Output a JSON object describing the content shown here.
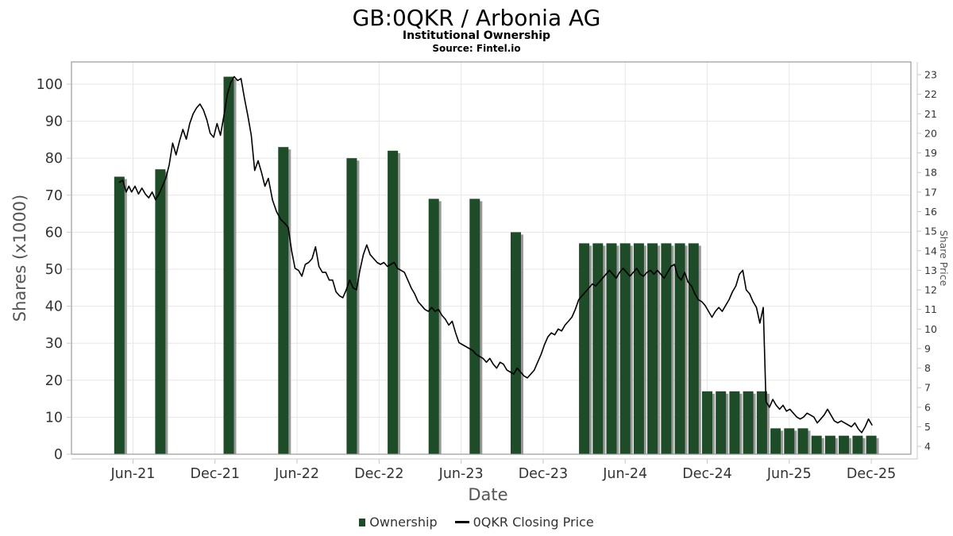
{
  "header": {
    "title": "GB:0QKR / Arbonia AG",
    "subtitle": "Institutional Ownership",
    "source": "Source: Fintel.io"
  },
  "legend": {
    "ownership_label": "Ownership",
    "price_label": "0QKR Closing Price"
  },
  "colors": {
    "bar": "#1e4b28",
    "bar_shadow": "#999999",
    "price_line": "#000000",
    "grid": "#e6e6e6",
    "plot_border": "#999999",
    "axis_line": "#c8c8c8",
    "tick_label": "#333333",
    "axis_title": "#555555"
  },
  "chart_data": {
    "type": "combo-bar-line",
    "x_axis": {
      "title": "Date",
      "ticks": [
        {
          "label": "Jun-21",
          "x": 0
        },
        {
          "label": "Dec-21",
          "x": 6
        },
        {
          "label": "Jun-22",
          "x": 12
        },
        {
          "label": "Dec-22",
          "x": 18
        },
        {
          "label": "Jun-23",
          "x": 24
        },
        {
          "label": "Dec-23",
          "x": 30
        },
        {
          "label": "Jun-24",
          "x": 36
        },
        {
          "label": "Dec-24",
          "x": 42
        },
        {
          "label": "Jun-25",
          "x": 48
        },
        {
          "label": "Dec-25",
          "x": 54
        }
      ],
      "range_months": [
        -4.5,
        56.9
      ],
      "grid": true
    },
    "left_axis": {
      "title": "Shares (x1000)",
      "ticks": [
        0,
        10,
        20,
        30,
        40,
        50,
        60,
        70,
        80,
        90,
        100
      ],
      "range": [
        0,
        106
      ],
      "grid": true
    },
    "right_axis": {
      "title": "Share Price",
      "ticks": [
        4,
        5,
        6,
        7,
        8,
        9,
        10,
        11,
        12,
        13,
        14,
        15,
        16,
        17,
        18,
        19,
        20,
        21,
        22,
        23
      ],
      "range": [
        3.6,
        23.65
      ],
      "grid": false
    },
    "series": [
      {
        "name": "Ownership",
        "type": "bar",
        "axis": "left",
        "points": [
          {
            "date": "May-21",
            "x": -1,
            "y": 75
          },
          {
            "date": "Aug-21",
            "x": 2,
            "y": 77
          },
          {
            "date": "Jan-22",
            "x": 7,
            "y": 102
          },
          {
            "date": "May-22",
            "x": 11,
            "y": 83
          },
          {
            "date": "Oct-22",
            "x": 16,
            "y": 80
          },
          {
            "date": "Jan-23",
            "x": 19,
            "y": 82
          },
          {
            "date": "Apr-23",
            "x": 22,
            "y": 69
          },
          {
            "date": "Jul-23",
            "x": 25,
            "y": 69
          },
          {
            "date": "Oct-23",
            "x": 28,
            "y": 60
          },
          {
            "date": "Mar-24",
            "x": 33,
            "y": 57
          },
          {
            "date": "Apr-24",
            "x": 34,
            "y": 57
          },
          {
            "date": "May-24",
            "x": 35,
            "y": 57
          },
          {
            "date": "Jun-24",
            "x": 36,
            "y": 57
          },
          {
            "date": "Jul-24",
            "x": 37,
            "y": 57
          },
          {
            "date": "Aug-24",
            "x": 38,
            "y": 57
          },
          {
            "date": "Sep-24",
            "x": 39,
            "y": 57
          },
          {
            "date": "Oct-24",
            "x": 40,
            "y": 57
          },
          {
            "date": "Nov-24",
            "x": 41,
            "y": 57
          },
          {
            "date": "Dec-24",
            "x": 42,
            "y": 17
          },
          {
            "date": "Jan-25",
            "x": 43,
            "y": 17
          },
          {
            "date": "Feb-25",
            "x": 44,
            "y": 17
          },
          {
            "date": "Mar-25",
            "x": 45,
            "y": 17
          },
          {
            "date": "Apr-25",
            "x": 46,
            "y": 17
          },
          {
            "date": "May-25",
            "x": 47,
            "y": 7
          },
          {
            "date": "Jun-25",
            "x": 48,
            "y": 7
          },
          {
            "date": "Jul-25",
            "x": 49,
            "y": 7
          },
          {
            "date": "Aug-25",
            "x": 50,
            "y": 5
          },
          {
            "date": "Sep-25",
            "x": 51,
            "y": 5
          },
          {
            "date": "Oct-25",
            "x": 52,
            "y": 5
          },
          {
            "date": "Nov-25",
            "x": 53,
            "y": 5
          },
          {
            "date": "Dec-25",
            "x": 54,
            "y": 5
          }
        ]
      },
      {
        "name": "0QKR Closing Price",
        "type": "line",
        "axis": "right",
        "points": [
          [
            -1.0,
            17.5
          ],
          [
            -0.75,
            17.6
          ],
          [
            -0.5,
            17.0
          ],
          [
            -0.3,
            17.3
          ],
          [
            -0.1,
            17.0
          ],
          [
            0.15,
            17.3
          ],
          [
            0.4,
            16.9
          ],
          [
            0.65,
            17.2
          ],
          [
            0.9,
            16.9
          ],
          [
            1.15,
            16.7
          ],
          [
            1.4,
            17.0
          ],
          [
            1.65,
            16.6
          ],
          [
            1.9,
            16.9
          ],
          [
            2.15,
            17.3
          ],
          [
            2.4,
            17.7
          ],
          [
            2.65,
            18.4
          ],
          [
            2.9,
            19.5
          ],
          [
            3.15,
            18.9
          ],
          [
            3.4,
            19.6
          ],
          [
            3.65,
            20.2
          ],
          [
            3.9,
            19.7
          ],
          [
            4.15,
            20.5
          ],
          [
            4.4,
            21.0
          ],
          [
            4.65,
            21.3
          ],
          [
            4.9,
            21.5
          ],
          [
            5.15,
            21.2
          ],
          [
            5.4,
            20.7
          ],
          [
            5.65,
            20.0
          ],
          [
            5.9,
            19.8
          ],
          [
            6.15,
            20.5
          ],
          [
            6.4,
            19.9
          ],
          [
            6.65,
            20.9
          ],
          [
            6.9,
            22.0
          ],
          [
            7.15,
            22.6
          ],
          [
            7.4,
            22.9
          ],
          [
            7.65,
            22.7
          ],
          [
            7.9,
            22.8
          ],
          [
            8.15,
            21.8
          ],
          [
            8.4,
            20.9
          ],
          [
            8.65,
            19.9
          ],
          [
            8.9,
            18.1
          ],
          [
            9.15,
            18.6
          ],
          [
            9.4,
            18.0
          ],
          [
            9.65,
            17.3
          ],
          [
            9.9,
            17.7
          ],
          [
            10.2,
            16.6
          ],
          [
            10.5,
            16.0
          ],
          [
            10.8,
            15.6
          ],
          [
            11.1,
            15.4
          ],
          [
            11.35,
            15.2
          ],
          [
            11.6,
            14.0
          ],
          [
            11.85,
            13.1
          ],
          [
            12.1,
            13.0
          ],
          [
            12.35,
            12.7
          ],
          [
            12.6,
            13.3
          ],
          [
            12.85,
            13.4
          ],
          [
            13.1,
            13.6
          ],
          [
            13.35,
            14.2
          ],
          [
            13.6,
            13.2
          ],
          [
            13.85,
            12.9
          ],
          [
            14.1,
            12.9
          ],
          [
            14.35,
            12.5
          ],
          [
            14.6,
            12.5
          ],
          [
            14.85,
            11.9
          ],
          [
            15.1,
            11.7
          ],
          [
            15.35,
            11.6
          ],
          [
            15.6,
            12.0
          ],
          [
            15.85,
            12.5
          ],
          [
            16.1,
            12.1
          ],
          [
            16.35,
            12.0
          ],
          [
            16.6,
            13.0
          ],
          [
            16.85,
            13.8
          ],
          [
            17.1,
            14.3
          ],
          [
            17.35,
            13.8
          ],
          [
            17.6,
            13.6
          ],
          [
            17.85,
            13.4
          ],
          [
            18.1,
            13.3
          ],
          [
            18.35,
            13.4
          ],
          [
            18.6,
            13.2
          ],
          [
            18.85,
            13.3
          ],
          [
            19.1,
            13.4
          ],
          [
            19.35,
            13.1
          ],
          [
            19.6,
            13.0
          ],
          [
            19.85,
            12.9
          ],
          [
            20.1,
            12.5
          ],
          [
            20.35,
            12.1
          ],
          [
            20.6,
            11.8
          ],
          [
            20.85,
            11.4
          ],
          [
            21.1,
            11.2
          ],
          [
            21.35,
            11.0
          ],
          [
            21.6,
            10.9
          ],
          [
            21.85,
            11.1
          ],
          [
            22.1,
            10.9
          ],
          [
            22.35,
            11.0
          ],
          [
            22.6,
            10.7
          ],
          [
            22.85,
            10.5
          ],
          [
            23.1,
            10.2
          ],
          [
            23.35,
            10.4
          ],
          [
            23.6,
            9.8
          ],
          [
            23.85,
            9.3
          ],
          [
            24.1,
            9.2
          ],
          [
            24.35,
            9.1
          ],
          [
            24.6,
            9.0
          ],
          [
            24.85,
            8.9
          ],
          [
            25.1,
            8.7
          ],
          [
            25.35,
            8.6
          ],
          [
            25.6,
            8.5
          ],
          [
            25.85,
            8.3
          ],
          [
            26.1,
            8.5
          ],
          [
            26.35,
            8.2
          ],
          [
            26.6,
            8.0
          ],
          [
            26.85,
            8.3
          ],
          [
            27.1,
            8.2
          ],
          [
            27.35,
            7.9
          ],
          [
            27.6,
            7.8
          ],
          [
            27.85,
            7.7
          ],
          [
            28.1,
            8.0
          ],
          [
            28.35,
            7.8
          ],
          [
            28.6,
            7.6
          ],
          [
            28.85,
            7.5
          ],
          [
            29.1,
            7.7
          ],
          [
            29.35,
            7.9
          ],
          [
            29.6,
            8.3
          ],
          [
            29.85,
            8.7
          ],
          [
            30.1,
            9.2
          ],
          [
            30.35,
            9.6
          ],
          [
            30.6,
            9.8
          ],
          [
            30.85,
            9.7
          ],
          [
            31.1,
            10.0
          ],
          [
            31.35,
            9.9
          ],
          [
            31.6,
            10.2
          ],
          [
            31.85,
            10.4
          ],
          [
            32.1,
            10.6
          ],
          [
            32.35,
            11.0
          ],
          [
            32.6,
            11.5
          ],
          [
            32.85,
            11.7
          ],
          [
            33.1,
            11.9
          ],
          [
            33.35,
            12.1
          ],
          [
            33.6,
            12.3
          ],
          [
            33.85,
            12.2
          ],
          [
            34.1,
            12.4
          ],
          [
            34.35,
            12.6
          ],
          [
            34.6,
            12.8
          ],
          [
            34.85,
            13.0
          ],
          [
            35.1,
            12.8
          ],
          [
            35.35,
            12.6
          ],
          [
            35.6,
            12.9
          ],
          [
            35.85,
            13.1
          ],
          [
            36.1,
            12.9
          ],
          [
            36.35,
            12.7
          ],
          [
            36.6,
            12.9
          ],
          [
            36.85,
            13.1
          ],
          [
            37.1,
            12.8
          ],
          [
            37.35,
            12.7
          ],
          [
            37.6,
            12.9
          ],
          [
            37.85,
            13.0
          ],
          [
            38.1,
            12.8
          ],
          [
            38.35,
            13.0
          ],
          [
            38.6,
            12.8
          ],
          [
            38.85,
            12.6
          ],
          [
            39.1,
            12.9
          ],
          [
            39.35,
            13.2
          ],
          [
            39.6,
            13.3
          ],
          [
            39.85,
            12.7
          ],
          [
            40.1,
            12.5
          ],
          [
            40.35,
            12.9
          ],
          [
            40.6,
            12.4
          ],
          [
            40.85,
            12.2
          ],
          [
            41.1,
            11.8
          ],
          [
            41.35,
            11.5
          ],
          [
            41.6,
            11.4
          ],
          [
            41.85,
            11.2
          ],
          [
            42.1,
            10.9
          ],
          [
            42.35,
            10.6
          ],
          [
            42.6,
            10.9
          ],
          [
            42.85,
            11.1
          ],
          [
            43.1,
            10.9
          ],
          [
            43.35,
            11.2
          ],
          [
            43.6,
            11.5
          ],
          [
            43.85,
            11.9
          ],
          [
            44.1,
            12.2
          ],
          [
            44.35,
            12.8
          ],
          [
            44.6,
            13.0
          ],
          [
            44.85,
            12.0
          ],
          [
            45.1,
            11.8
          ],
          [
            45.35,
            11.4
          ],
          [
            45.6,
            11.1
          ],
          [
            45.85,
            10.3
          ],
          [
            46.1,
            11.1
          ],
          [
            46.3,
            6.3
          ],
          [
            46.55,
            6.0
          ],
          [
            46.8,
            6.4
          ],
          [
            47.05,
            6.1
          ],
          [
            47.3,
            5.9
          ],
          [
            47.55,
            6.1
          ],
          [
            47.8,
            5.8
          ],
          [
            48.05,
            5.9
          ],
          [
            48.3,
            5.7
          ],
          [
            48.55,
            5.5
          ],
          [
            48.8,
            5.4
          ],
          [
            49.05,
            5.5
          ],
          [
            49.3,
            5.7
          ],
          [
            49.55,
            5.6
          ],
          [
            49.8,
            5.5
          ],
          [
            50.05,
            5.2
          ],
          [
            50.3,
            5.4
          ],
          [
            50.55,
            5.6
          ],
          [
            50.8,
            5.9
          ],
          [
            51.05,
            5.6
          ],
          [
            51.3,
            5.3
          ],
          [
            51.55,
            5.2
          ],
          [
            51.8,
            5.3
          ],
          [
            52.05,
            5.2
          ],
          [
            52.3,
            5.1
          ],
          [
            52.55,
            5.0
          ],
          [
            52.8,
            5.2
          ],
          [
            53.05,
            4.9
          ],
          [
            53.3,
            4.7
          ],
          [
            53.55,
            5.0
          ],
          [
            53.8,
            5.4
          ],
          [
            54.05,
            5.1
          ]
        ]
      }
    ]
  }
}
